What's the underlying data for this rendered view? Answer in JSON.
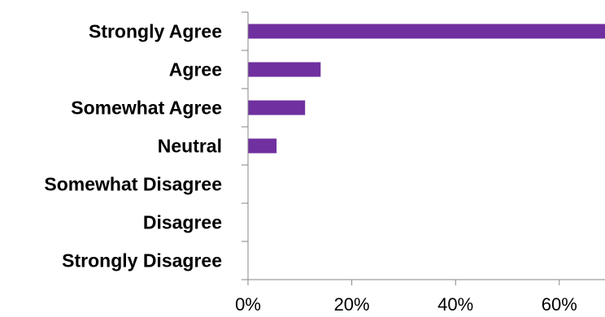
{
  "chart_data": {
    "type": "bar",
    "orientation": "horizontal",
    "categories": [
      "Strongly Agree",
      "Agree",
      "Somewhat Agree",
      "Neutral",
      "Somewhat Disagree",
      "Disagree",
      "Strongly Disagree"
    ],
    "values": [
      0.69,
      0.14,
      0.11,
      0.055,
      0,
      0,
      0
    ],
    "xlim": [
      0,
      0.69
    ],
    "x_ticks": [
      0,
      0.2,
      0.4,
      0.6
    ],
    "x_tick_labels": [
      "0%",
      "20%",
      "40%",
      "60%"
    ],
    "title": "",
    "xlabel": "",
    "ylabel": "",
    "grid": false,
    "legend": "none",
    "bar_color": "#7030A0"
  }
}
